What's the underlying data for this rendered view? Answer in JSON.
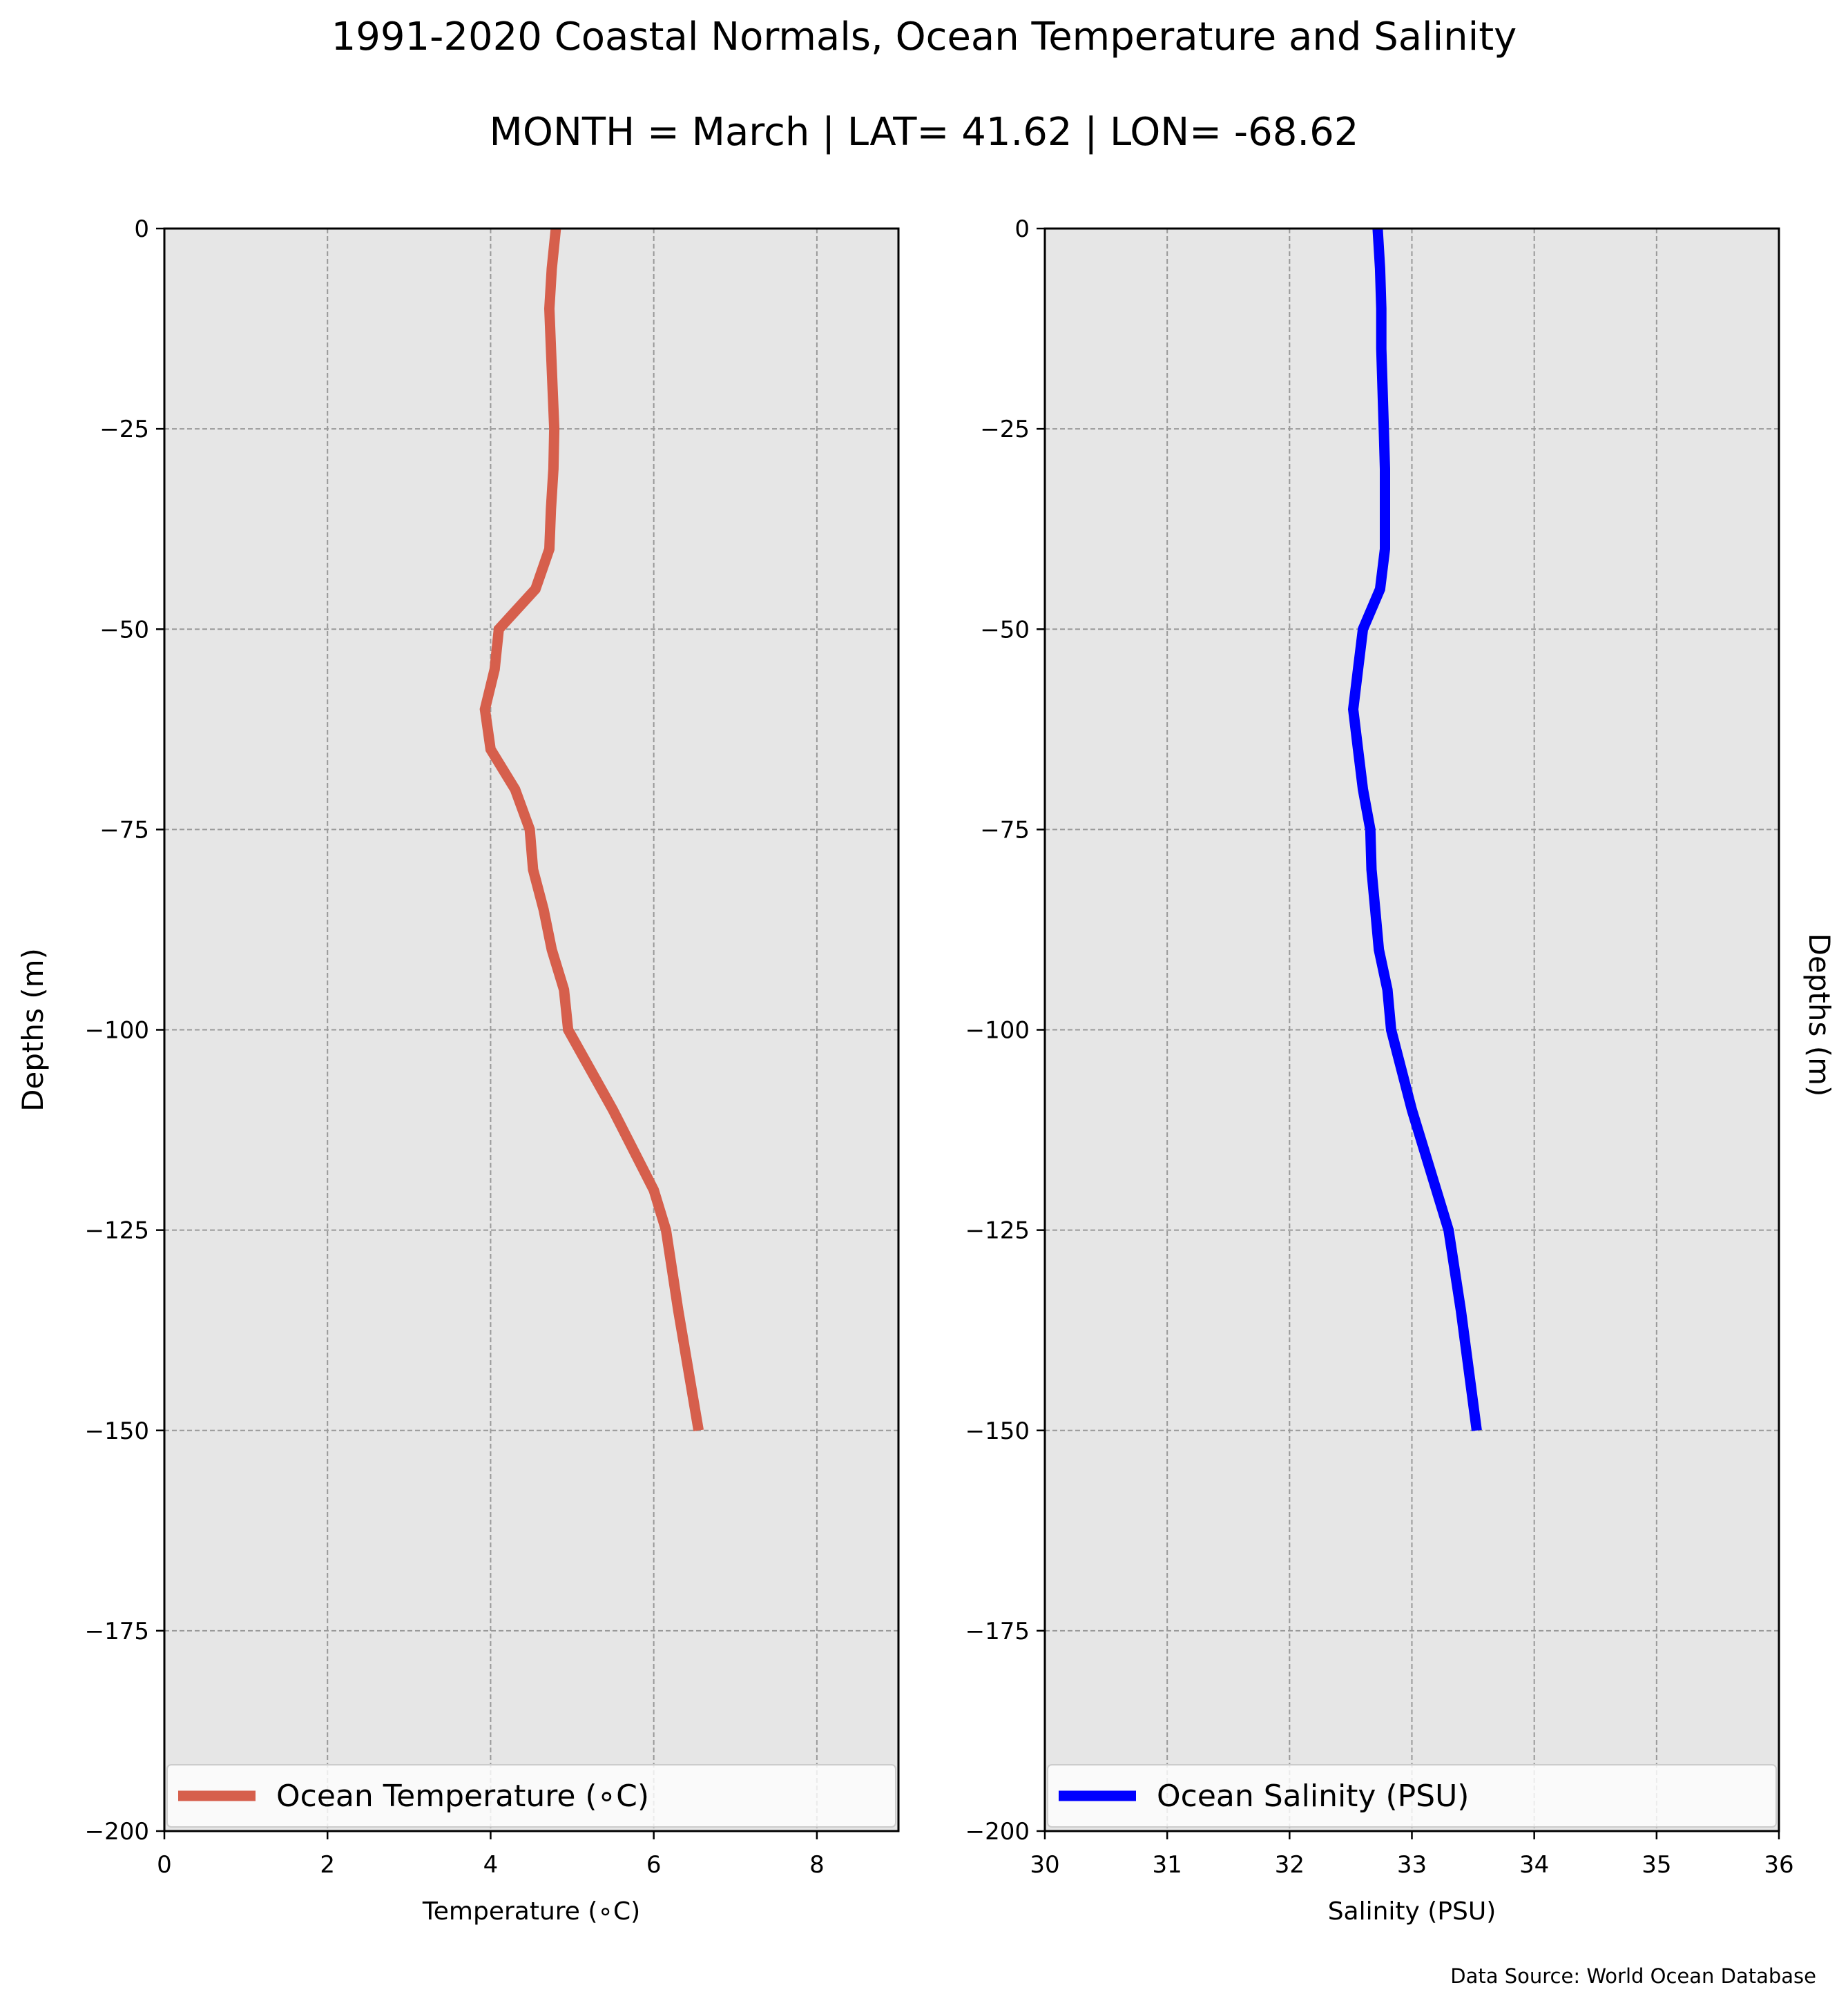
{
  "figure": {
    "title": "1991-2020 Coastal Normals, Ocean Temperature and Salinity",
    "subtitle": "MONTH = March | LAT= 41.62 | LON= -68.62",
    "source_note": "Data Source: World Ocean Database",
    "right_ylabel": "Depths (m)"
  },
  "colors": {
    "temperature_line": "#d65f4c",
    "salinity_line": "#0000ff",
    "plot_background": "#e6e6e6",
    "grid": "#999999"
  },
  "chart_data": [
    {
      "type": "line",
      "xlabel": "Temperature (∘C)",
      "ylabel": "Depths (m)",
      "xlim": [
        0,
        9
      ],
      "ylim": [
        -200,
        0
      ],
      "xticks": [
        0,
        2,
        4,
        6,
        8
      ],
      "yticks": [
        0,
        -25,
        -50,
        -75,
        -100,
        -125,
        -150,
        -175,
        -200
      ],
      "grid": true,
      "legend": "lower-center",
      "series": [
        {
          "name": "Ocean Temperature (∘C)",
          "x": [
            4.8,
            4.75,
            4.72,
            4.74,
            4.76,
            4.78,
            4.77,
            4.74,
            4.72,
            4.55,
            4.1,
            4.05,
            3.93,
            4.0,
            4.3,
            4.48,
            4.52,
            4.65,
            4.75,
            4.9,
            4.95,
            5.5,
            6.0,
            6.15,
            6.3,
            6.55
          ],
          "y": [
            0,
            -5,
            -10,
            -15,
            -20,
            -25,
            -30,
            -35,
            -40,
            -45,
            -50,
            -55,
            -60,
            -65,
            -70,
            -75,
            -80,
            -85,
            -90,
            -95,
            -100,
            -110,
            -120,
            -125,
            -135,
            -150
          ]
        }
      ]
    },
    {
      "type": "line",
      "xlabel": "Salinity (PSU)",
      "ylabel": "Depths (m)",
      "xlim": [
        30,
        36
      ],
      "ylim": [
        -200,
        0
      ],
      "xticks": [
        30,
        31,
        32,
        33,
        34,
        35,
        36
      ],
      "yticks": [
        0,
        -25,
        -50,
        -75,
        -100,
        -125,
        -150,
        -175,
        -200
      ],
      "grid": true,
      "legend": "lower-center",
      "series": [
        {
          "name": "Ocean Salinity (PSU)",
          "x": [
            32.72,
            32.74,
            32.75,
            32.75,
            32.76,
            32.77,
            32.78,
            32.78,
            32.78,
            32.74,
            32.6,
            32.56,
            32.52,
            32.56,
            32.6,
            32.66,
            32.67,
            32.7,
            32.73,
            32.8,
            32.83,
            33.0,
            33.2,
            33.3,
            33.4,
            33.53
          ],
          "y": [
            0,
            -5,
            -10,
            -15,
            -20,
            -25,
            -30,
            -35,
            -40,
            -45,
            -50,
            -55,
            -60,
            -65,
            -70,
            -75,
            -80,
            -85,
            -90,
            -95,
            -100,
            -110,
            -120,
            -125,
            -135,
            -150
          ]
        }
      ]
    }
  ]
}
